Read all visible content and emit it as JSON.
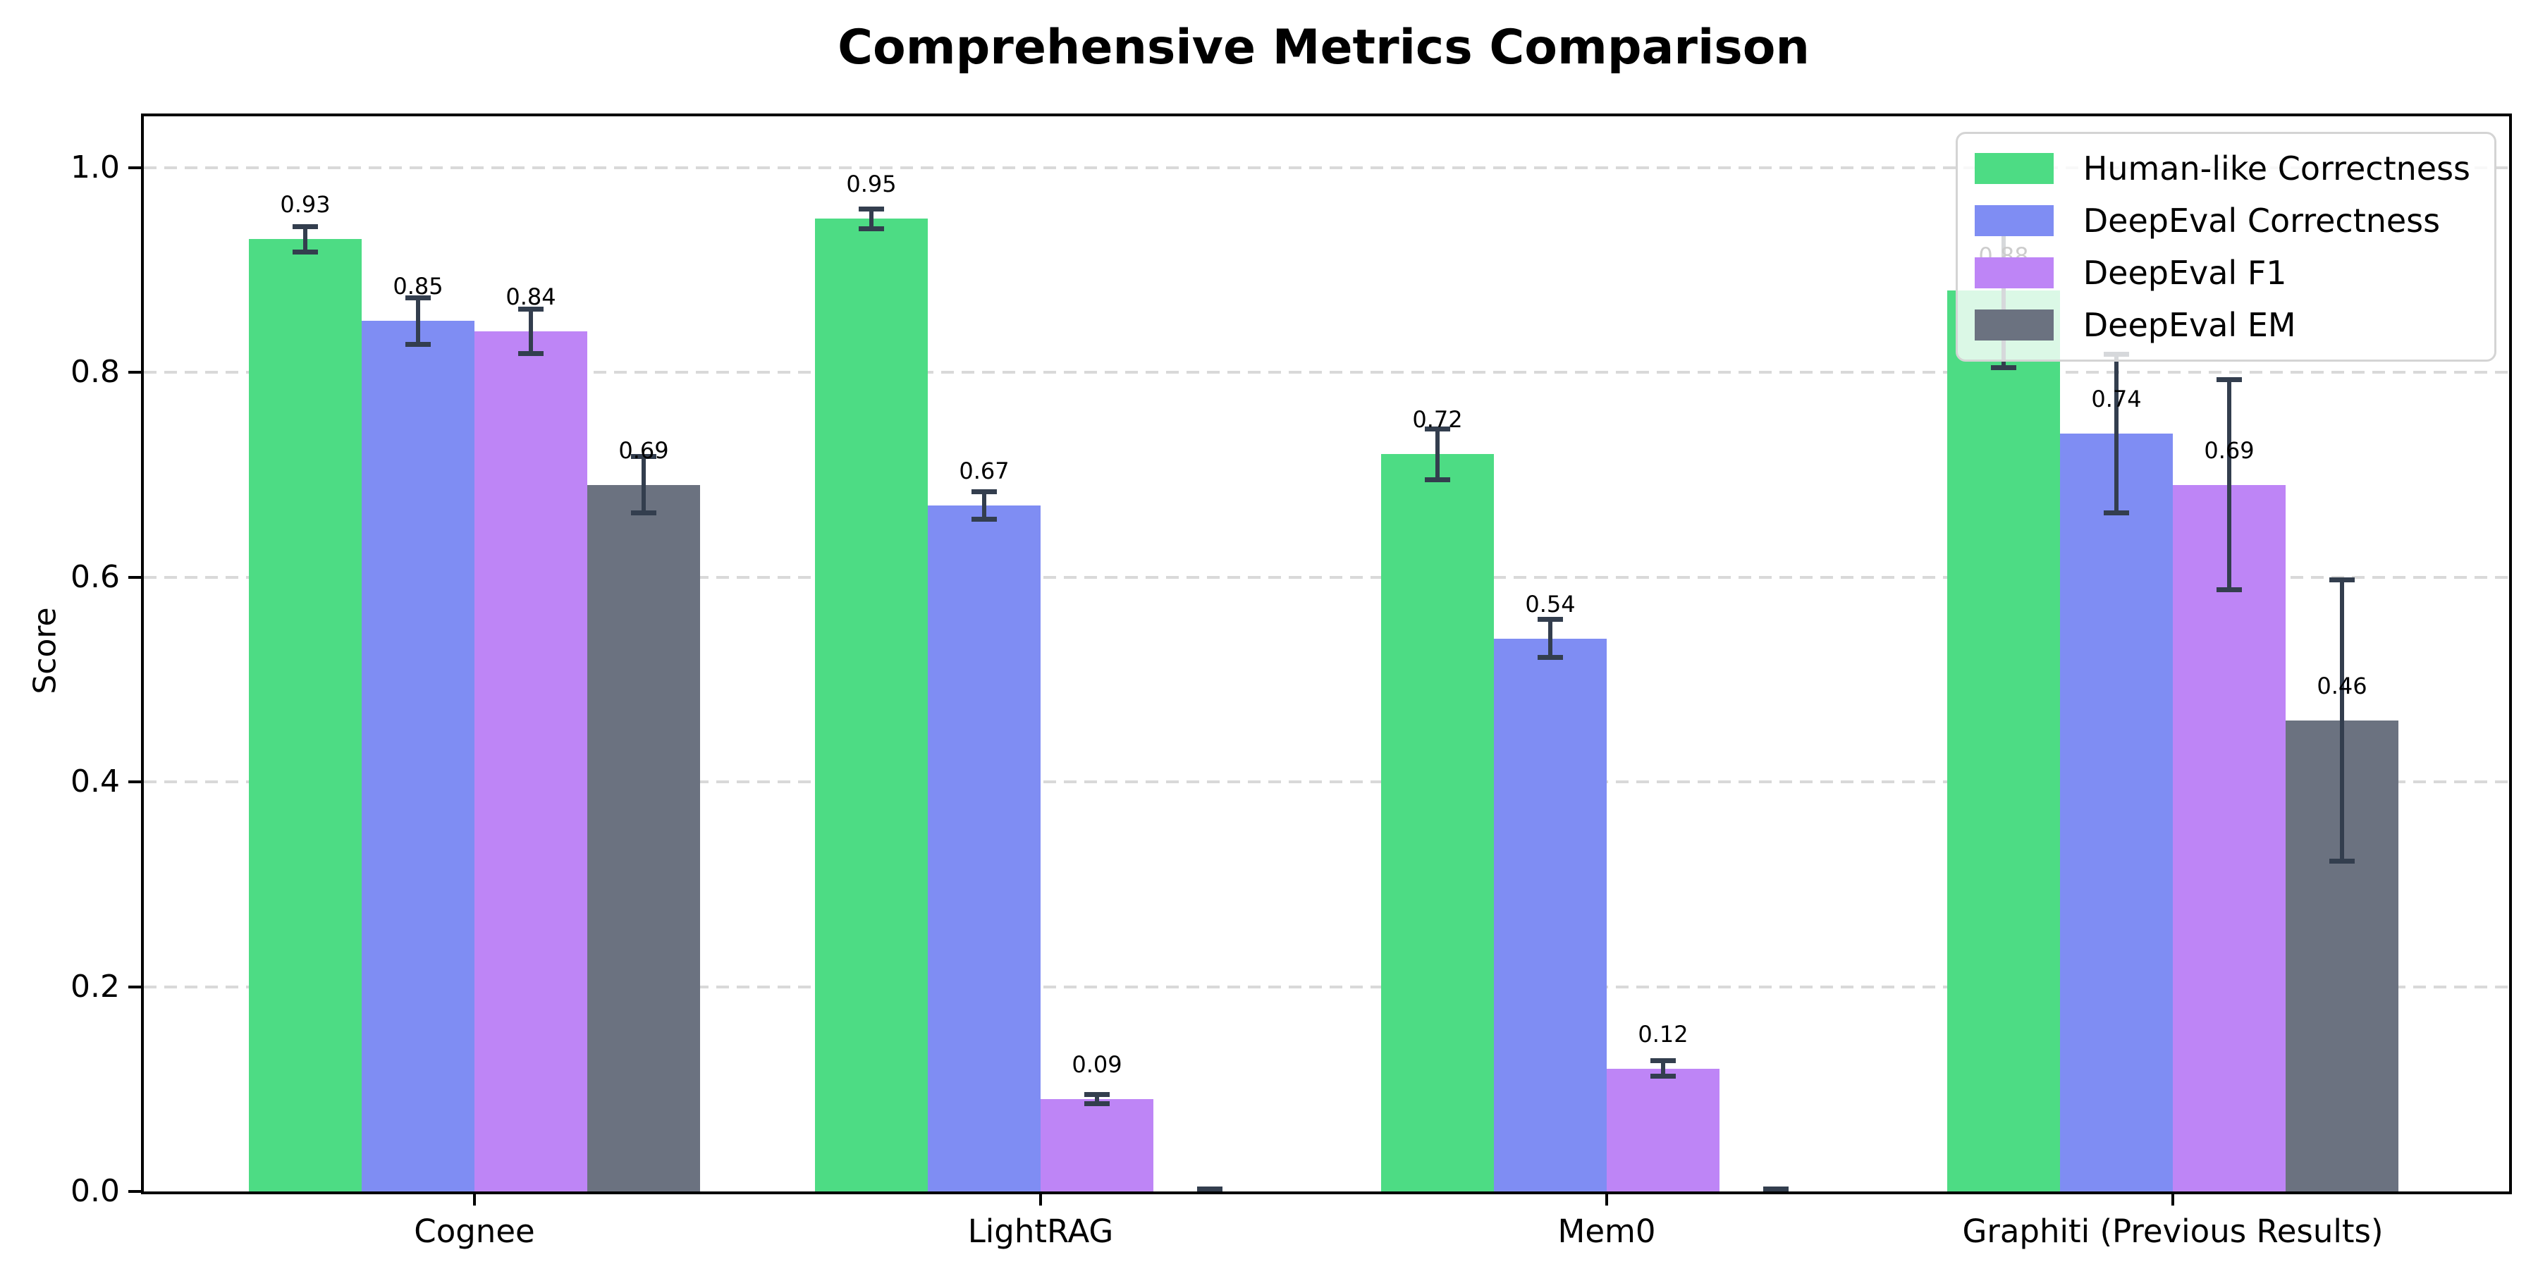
{
  "chart_data": {
    "type": "bar",
    "title": "Comprehensive Metrics Comparison",
    "ylabel": "Score",
    "xlabel": "",
    "categories": [
      "Cognee",
      "LightRAG",
      "Mem0",
      "Graphiti (Previous Results)"
    ],
    "series": [
      {
        "name": "Human-like Correctness",
        "color": "#4DDC84",
        "values": [
          0.93,
          0.95,
          0.72,
          0.88
        ],
        "errors": [
          0.015,
          0.012,
          0.027,
          0.078
        ],
        "labels": [
          "0.93",
          "0.95",
          "0.72",
          "0.88"
        ]
      },
      {
        "name": "DeepEval Correctness",
        "color": "#7F8DF3",
        "values": [
          0.85,
          0.67,
          0.54,
          0.74
        ],
        "errors": [
          0.025,
          0.016,
          0.021,
          0.08
        ],
        "labels": [
          "0.85",
          "0.67",
          "0.54",
          "0.74"
        ]
      },
      {
        "name": "DeepEval F1",
        "color": "#BE85F6",
        "values": [
          0.84,
          0.09,
          0.12,
          0.69
        ],
        "errors": [
          0.024,
          0.007,
          0.01,
          0.105
        ],
        "labels": [
          "0.84",
          "0.09",
          "0.12",
          "0.69"
        ]
      },
      {
        "name": "DeepEval EM",
        "color": "#6B7280",
        "values": [
          0.69,
          0.0,
          0.0,
          0.46
        ],
        "errors": [
          0.03,
          0.005,
          0.005,
          0.14
        ],
        "labels": [
          "0.69",
          "",
          "",
          "0.46"
        ]
      }
    ],
    "yticks": [
      0.0,
      0.2,
      0.4,
      0.6,
      0.8,
      1.0
    ],
    "ytick_labels": [
      "0.0",
      "0.2",
      "0.4",
      "0.6",
      "0.8",
      "1.0"
    ],
    "ylim": [
      0,
      1.05
    ],
    "grid": "horizontal-dashed",
    "legend_position": "upper right",
    "error_bar_color": "#333E4E",
    "grid_color": "#D9D9D9"
  }
}
